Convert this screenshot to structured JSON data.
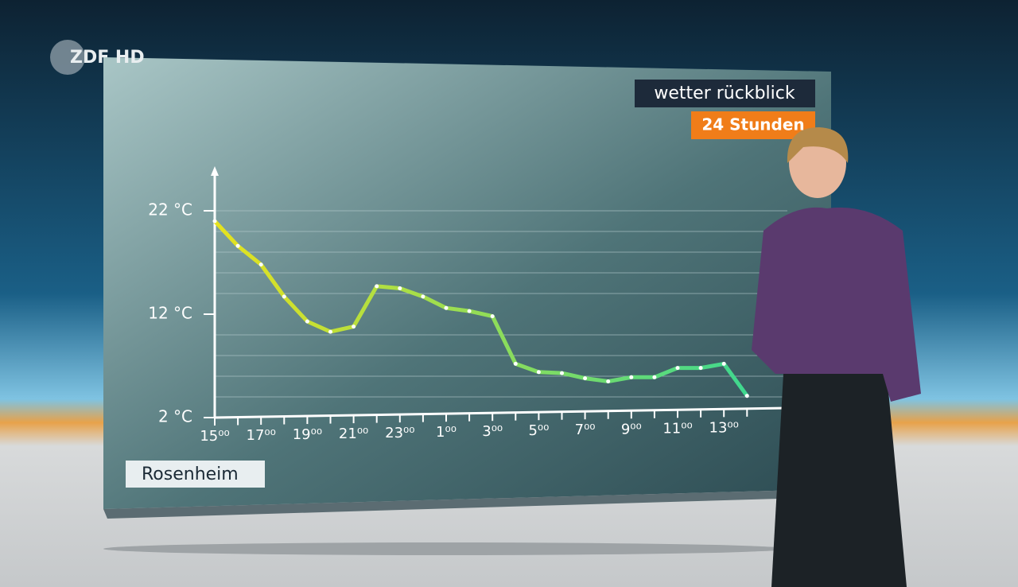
{
  "channel_logo": "ZDF HD",
  "chart_data": {
    "type": "line",
    "title": "Rosenheim",
    "annotations": [
      "wetter rückblick",
      "24 Stunden"
    ],
    "categories": [
      "15⁰⁰",
      null,
      "17⁰⁰",
      null,
      "19⁰⁰",
      null,
      "21⁰⁰",
      null,
      "23⁰⁰",
      null,
      "1⁰⁰",
      null,
      "3⁰⁰",
      null,
      "5⁰⁰",
      null,
      "7⁰⁰",
      null,
      "9⁰⁰",
      null,
      "11⁰⁰",
      null,
      "13⁰⁰",
      null
    ],
    "values": [
      21,
      18.6,
      16.8,
      13.7,
      11.3,
      10.3,
      10.8,
      14.7,
      14.5,
      13.7,
      12.6,
      12.3,
      11.8,
      7.2,
      6.4,
      6.3,
      5.8,
      5.5,
      5.9,
      5.9,
      6.8,
      6.8,
      7.2,
      4.1
    ],
    "color_start": "#e6e21e",
    "color_end": "#3fd88f",
    "ylim": [
      2,
      26
    ],
    "yticks": [
      {
        "value": 2,
        "label": "2 °C"
      },
      {
        "value": 12,
        "label": "12 °C"
      },
      {
        "value": 22,
        "label": "22 °C"
      }
    ],
    "ygrid": [
      4,
      6,
      8,
      10,
      14,
      16,
      18,
      20,
      22
    ],
    "grid": true
  }
}
